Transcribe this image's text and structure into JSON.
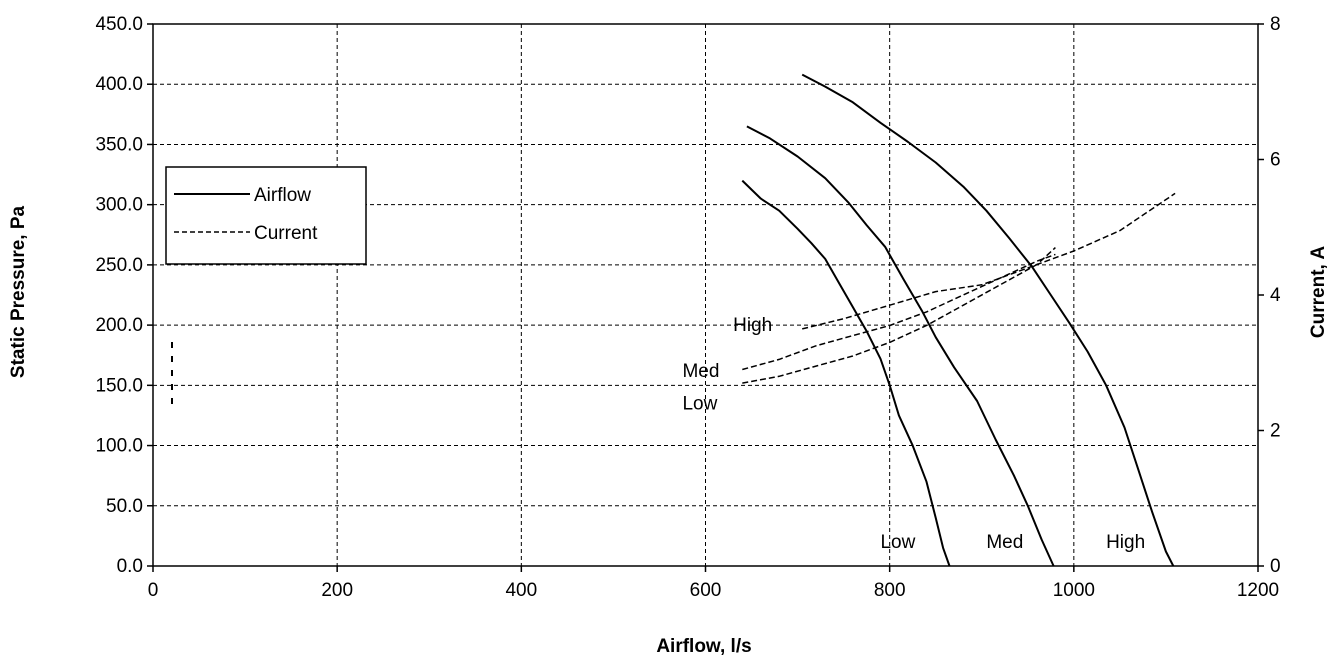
{
  "chart_data": {
    "type": "line",
    "xlabel": "Airflow, l/s",
    "ylabel": "Static Pressure, Pa",
    "y2label": "Current, A",
    "xlim": [
      0,
      1200
    ],
    "ylim": [
      0,
      450
    ],
    "y2lim": [
      0,
      8
    ],
    "x_ticks": [
      "0",
      "200",
      "400",
      "600",
      "800",
      "1000",
      "1200"
    ],
    "y_ticks": [
      "0.0",
      "50.0",
      "100.0",
      "150.0",
      "200.0",
      "250.0",
      "300.0",
      "350.0",
      "400.0",
      "450.0"
    ],
    "y2_ticks": [
      "0",
      "2",
      "4",
      "6",
      "8"
    ],
    "grid": true,
    "legend": {
      "position": "upper-left",
      "entries": [
        {
          "label": "Airflow",
          "style": "solid"
        },
        {
          "label": "Current",
          "style": "dashed"
        }
      ]
    },
    "series": [
      {
        "label": "Low",
        "kind": "Airflow",
        "axis": "left",
        "points": [
          [
            640,
            320
          ],
          [
            660,
            305
          ],
          [
            680,
            295
          ],
          [
            700,
            280
          ],
          [
            715,
            268
          ],
          [
            730,
            255
          ],
          [
            745,
            235
          ],
          [
            760,
            215
          ],
          [
            775,
            195
          ],
          [
            790,
            172
          ],
          [
            800,
            150
          ],
          [
            810,
            125
          ],
          [
            825,
            100
          ],
          [
            840,
            70
          ],
          [
            850,
            40
          ],
          [
            858,
            15
          ],
          [
            865,
            0
          ]
        ]
      },
      {
        "label": "Med",
        "kind": "Airflow",
        "axis": "left",
        "points": [
          [
            645,
            365
          ],
          [
            670,
            355
          ],
          [
            700,
            340
          ],
          [
            730,
            322
          ],
          [
            755,
            302
          ],
          [
            775,
            283
          ],
          [
            795,
            265
          ],
          [
            815,
            238
          ],
          [
            835,
            212
          ],
          [
            850,
            190
          ],
          [
            870,
            165
          ],
          [
            895,
            137
          ],
          [
            915,
            105
          ],
          [
            935,
            75
          ],
          [
            950,
            50
          ],
          [
            965,
            22
          ],
          [
            978,
            0
          ]
        ]
      },
      {
        "label": "High",
        "kind": "Airflow",
        "axis": "left",
        "points": [
          [
            705,
            408
          ],
          [
            730,
            398
          ],
          [
            760,
            385
          ],
          [
            790,
            368
          ],
          [
            820,
            352
          ],
          [
            850,
            335
          ],
          [
            880,
            315
          ],
          [
            905,
            295
          ],
          [
            930,
            272
          ],
          [
            955,
            248
          ],
          [
            975,
            225
          ],
          [
            995,
            202
          ],
          [
            1015,
            178
          ],
          [
            1035,
            150
          ],
          [
            1055,
            115
          ],
          [
            1070,
            80
          ],
          [
            1085,
            45
          ],
          [
            1100,
            12
          ],
          [
            1108,
            0
          ]
        ]
      },
      {
        "label": "Low",
        "kind": "Current",
        "axis": "right",
        "points": [
          [
            640,
            2.7
          ],
          [
            680,
            2.8
          ],
          [
            720,
            2.95
          ],
          [
            760,
            3.1
          ],
          [
            800,
            3.3
          ],
          [
            840,
            3.55
          ],
          [
            880,
            3.85
          ],
          [
            920,
            4.15
          ],
          [
            960,
            4.45
          ],
          [
            980,
            4.7
          ]
        ]
      },
      {
        "label": "Med",
        "kind": "Current",
        "axis": "right",
        "points": [
          [
            640,
            2.9
          ],
          [
            680,
            3.05
          ],
          [
            720,
            3.25
          ],
          [
            760,
            3.4
          ],
          [
            800,
            3.55
          ],
          [
            840,
            3.75
          ],
          [
            880,
            4.0
          ],
          [
            920,
            4.25
          ],
          [
            960,
            4.5
          ],
          [
            980,
            4.6
          ]
        ]
      },
      {
        "label": "High",
        "kind": "Current",
        "axis": "right",
        "points": [
          [
            705,
            3.5
          ],
          [
            750,
            3.65
          ],
          [
            800,
            3.85
          ],
          [
            850,
            4.05
          ],
          [
            900,
            4.15
          ],
          [
            950,
            4.4
          ],
          [
            1000,
            4.65
          ],
          [
            1050,
            4.95
          ],
          [
            1110,
            5.5
          ]
        ]
      }
    ],
    "annotations": [
      {
        "text": "High",
        "x": 630,
        "y": 200
      },
      {
        "text": "Med",
        "x": 575,
        "y": 162
      },
      {
        "text": "Low",
        "x": 575,
        "y": 135
      },
      {
        "text": "Low",
        "x": 790,
        "y": 20
      },
      {
        "text": "Med",
        "x": 905,
        "y": 20
      },
      {
        "text": "High",
        "x": 1035,
        "y": 20
      }
    ]
  }
}
